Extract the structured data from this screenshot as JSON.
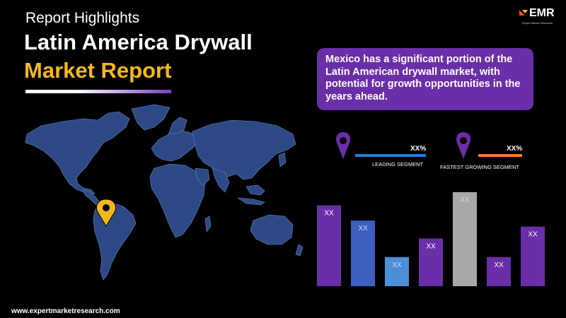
{
  "header": {
    "kicker": "Report Highlights",
    "title_line1": "Latin America Drywall",
    "title_line2": "Market Report"
  },
  "logo": {
    "text": "EMR",
    "subtitle": "Expert Market Research"
  },
  "callout": {
    "text": "Mexico has a significant portion of the Latin American drywall market, with potential for growth opportunities in the years ahead."
  },
  "segments": {
    "leading": {
      "label": "LEADING SEGMENT",
      "value": "XX%",
      "color": "#1f7fd6",
      "icon": "location-pin-icon"
    },
    "fastest": {
      "label": "FASTEST GROWING SEGMENT",
      "value": "XX%",
      "color": "#f07b35",
      "icon": "location-pin-icon"
    }
  },
  "map": {
    "fill": "#2d4a86",
    "highlight_pin_color": "#f5b81c",
    "icon": "location-pin-icon"
  },
  "chart_data": {
    "type": "bar",
    "categories": [
      "",
      "",
      "",
      "",
      "",
      "",
      ""
    ],
    "values": [
      122,
      99,
      44,
      72,
      142,
      44,
      90
    ],
    "labels": [
      "XX",
      "XX",
      "XX",
      "XX",
      "XX",
      "XX",
      "XX"
    ],
    "colors": [
      "#6a2fa8",
      "#3d5fc2",
      "#4a8fd8",
      "#6a2fa8",
      "#a8a8a8",
      "#6a2fa8",
      "#6a2fa8"
    ],
    "ylim": [
      0,
      160
    ]
  },
  "footer": {
    "url": "www.expertmarketresearch.com"
  }
}
